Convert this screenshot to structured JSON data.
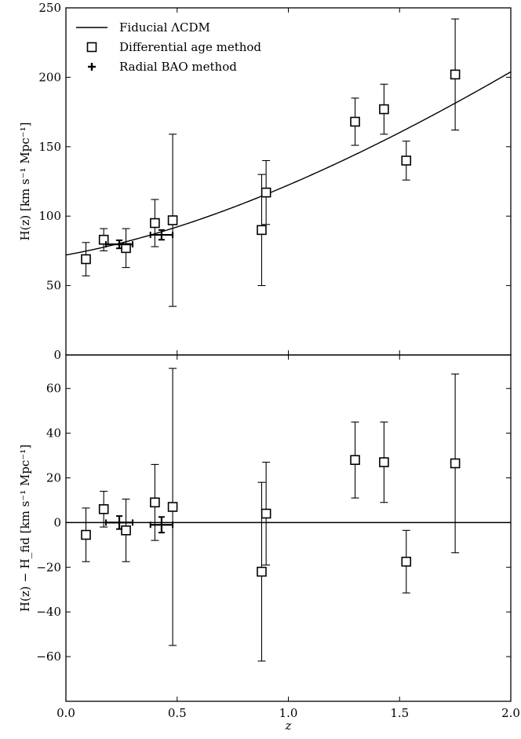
{
  "chart_data": [
    {
      "type": "scatter",
      "panel": "top",
      "title": "",
      "xlabel": "",
      "ylabel": "H(z) [km s⁻¹ Mpc⁻¹]",
      "xlim": [
        0.0,
        2.0
      ],
      "ylim": [
        0,
        250
      ],
      "grid": false,
      "legend_position": "top-left",
      "x_ticks": [
        0.0,
        0.5,
        1.0,
        1.5,
        2.0
      ],
      "x_tick_labels": [
        "",
        "",
        "",
        "",
        ""
      ],
      "y_ticks": [
        0,
        50,
        100,
        150,
        200,
        250
      ],
      "y_tick_labels": [
        "0",
        "50",
        "100",
        "150",
        "200",
        "250"
      ],
      "legend": [
        {
          "label": "Fiducial ΛCDM",
          "symbol": "line"
        },
        {
          "label": "Differential age method",
          "symbol": "square"
        },
        {
          "label": "Radial BAO method",
          "symbol": "cross"
        }
      ],
      "series": [
        {
          "name": "Fiducial ΛCDM",
          "kind": "curve",
          "H0": 72.0,
          "Omega_m": 0.27,
          "Omega_L": 0.73
        },
        {
          "name": "Differential age method",
          "kind": "square",
          "x": [
            0.09,
            0.17,
            0.27,
            0.4,
            0.48,
            0.88,
            0.9,
            1.3,
            1.43,
            1.53,
            1.75
          ],
          "y": [
            69,
            83,
            77,
            95,
            97,
            90,
            117,
            168,
            177,
            140,
            202
          ],
          "yerr": [
            12,
            8,
            14,
            17,
            62,
            40,
            23,
            17,
            18,
            14,
            40
          ]
        },
        {
          "name": "Radial BAO method",
          "kind": "cross",
          "x": [
            0.24,
            0.43
          ],
          "y": [
            79.7,
            86.5
          ],
          "xerr": [
            0.06,
            0.05
          ],
          "yerr": [
            2.9,
            3.5
          ]
        }
      ]
    },
    {
      "type": "scatter",
      "panel": "bottom",
      "title": "",
      "xlabel": "z",
      "ylabel": "H(z) − H_fid [km s⁻¹ Mpc⁻¹]",
      "xlim": [
        0.0,
        2.0
      ],
      "ylim": [
        -80,
        75
      ],
      "grid": false,
      "x_ticks": [
        0.0,
        0.5,
        1.0,
        1.5,
        2.0
      ],
      "x_tick_labels": [
        "0.0",
        "0.5",
        "1.0",
        "1.5",
        "2.0"
      ],
      "y_ticks": [
        -60,
        -40,
        -20,
        0,
        20,
        40,
        60
      ],
      "y_tick_labels": [
        "−60",
        "−40",
        "−20",
        "0",
        "20",
        "40",
        "60"
      ],
      "series": [
        {
          "name": "Fiducial ΛCDM",
          "kind": "hline",
          "y": 0
        },
        {
          "name": "Differential age method",
          "kind": "square",
          "x": [
            0.09,
            0.17,
            0.27,
            0.4,
            0.48,
            0.88,
            0.9,
            1.3,
            1.43,
            1.53,
            1.75
          ],
          "y": [
            -5.5,
            6,
            -3.5,
            9,
            7,
            -22,
            4,
            28,
            27,
            -17.5,
            26.5
          ],
          "yerr": [
            12,
            8,
            14,
            17,
            62,
            40,
            23,
            17,
            18,
            14,
            40
          ]
        },
        {
          "name": "Radial BAO method",
          "kind": "cross",
          "x": [
            0.24,
            0.43
          ],
          "y": [
            0,
            -1
          ],
          "xerr": [
            0.06,
            0.05
          ],
          "yerr": [
            2.9,
            3.5
          ]
        }
      ]
    }
  ]
}
